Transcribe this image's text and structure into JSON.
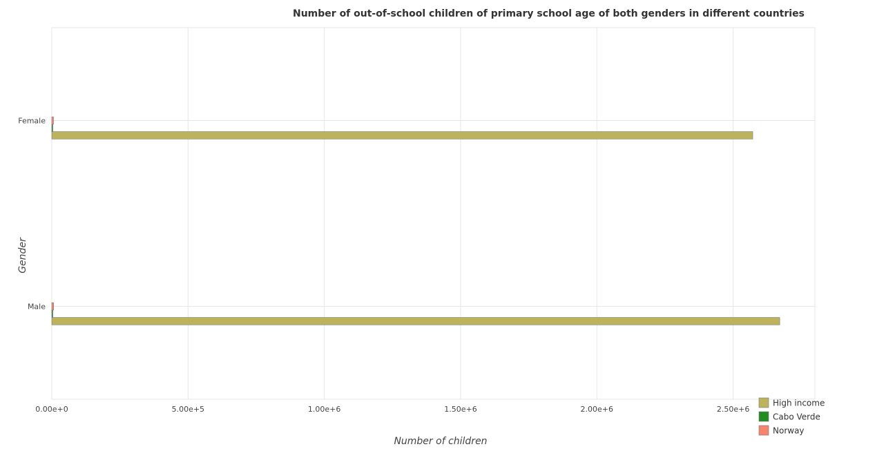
{
  "chart_data": {
    "type": "bar",
    "orientation": "horizontal",
    "title": "Number of out-of-school children of primary school age of both genders in different countries",
    "xlabel": "Number of children",
    "ylabel": "Gender",
    "categories": [
      "Female",
      "Male"
    ],
    "series": [
      {
        "name": "High income",
        "color": "#bdb35d",
        "values": [
          2572000,
          2671000
        ]
      },
      {
        "name": "Cabo Verde",
        "color": "#228b22",
        "values": [
          2500,
          2700
        ]
      },
      {
        "name": "Norway",
        "color": "#f4866f",
        "values": [
          6200,
          6600
        ]
      }
    ],
    "xlim": [
      0,
      2800000
    ],
    "xticks": [
      0,
      500000,
      1000000,
      1500000,
      2000000,
      2500000
    ],
    "xtick_labels": [
      "0.00e+0",
      "5.00e+5",
      "1.00e+6",
      "1.50e+6",
      "2.00e+6",
      "2.50e+6"
    ],
    "grid": true,
    "legend_position": "bottom-right"
  }
}
